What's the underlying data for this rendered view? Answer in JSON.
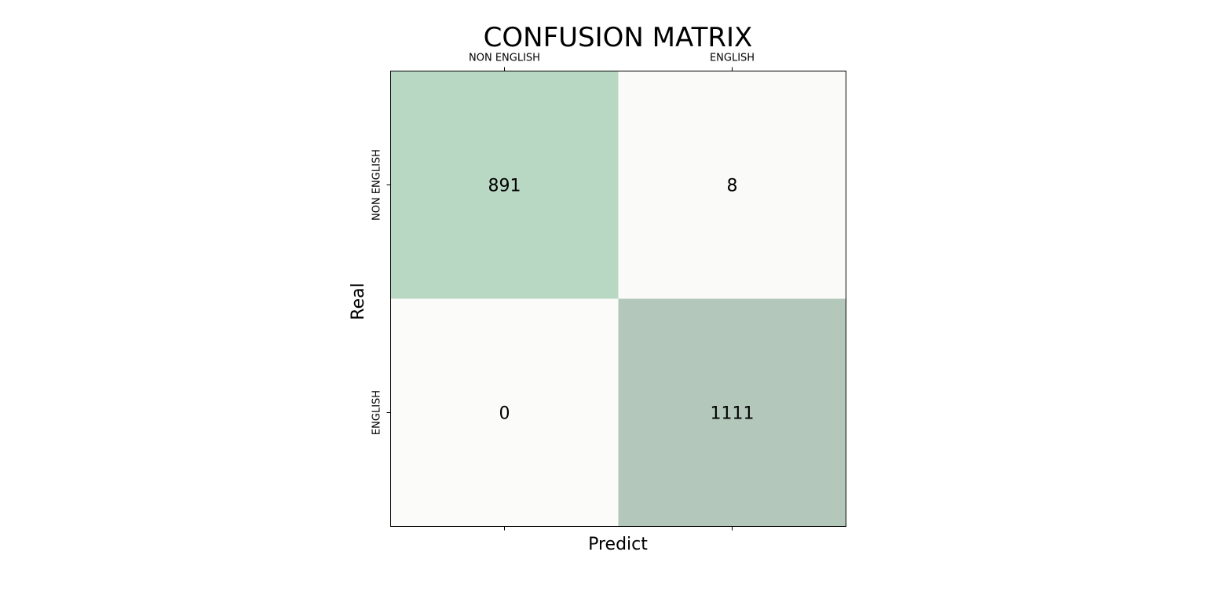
{
  "chart_data": {
    "type": "heatmap",
    "title": "CONFUSION MATRIX",
    "xlabel": "Predict",
    "ylabel": "Real",
    "x_categories": [
      "NON ENGLISH",
      "ENGLISH"
    ],
    "y_categories": [
      "NON ENGLISH",
      "ENGLISH"
    ],
    "x_tick_position": "top",
    "values": [
      [
        891,
        8
      ],
      [
        0,
        1111
      ]
    ],
    "cell_colors": [
      [
        "#b9d8c4",
        "#fafaf8"
      ],
      [
        "#fbfcfa",
        "#b3c8bb"
      ]
    ],
    "grid": false
  }
}
